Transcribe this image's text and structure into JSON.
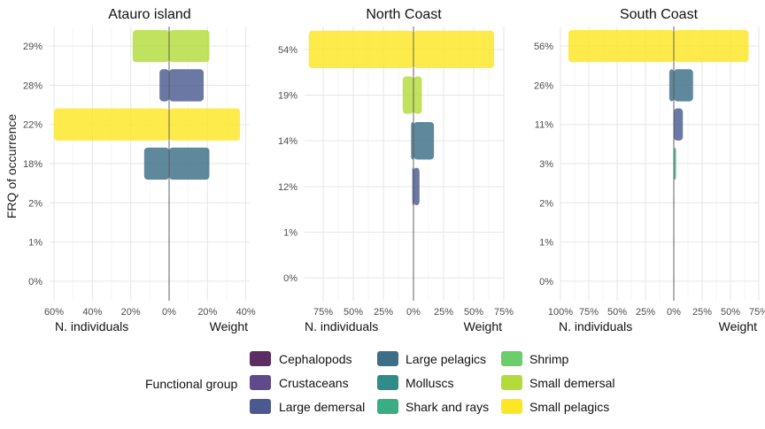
{
  "y_axis_title": "FRQ of occurrence",
  "axis_left_label": "N. individuals",
  "axis_right_label": "Weight",
  "legend": {
    "title": "Functional group",
    "items": [
      {
        "label": "Cephalopods",
        "color": "#5c2d63"
      },
      {
        "label": "Crustaceans",
        "color": "#5f4a8b"
      },
      {
        "label": "Large demersal",
        "color": "#4a5a90"
      },
      {
        "label": "Large pelagics",
        "color": "#3d6e88"
      },
      {
        "label": "Molluscs",
        "color": "#2f8c88"
      },
      {
        "label": "Shark and rays",
        "color": "#3aad84"
      },
      {
        "label": "Shrimp",
        "color": "#6ccd6b"
      },
      {
        "label": "Small demersal",
        "color": "#b3dc3b"
      },
      {
        "label": "Small pelagics",
        "color": "#fde725"
      }
    ]
  },
  "chart_data": [
    {
      "type": "bar",
      "title": "Atauro island",
      "xlabel_left": "N. individuals",
      "xlabel_right": "Weight",
      "ylabel": "FRQ of occurrence",
      "xlim": [
        -60,
        42
      ],
      "x_ticks": [
        -60,
        -40,
        -20,
        0,
        20,
        40
      ],
      "x_tick_labels": [
        "60%",
        "40%",
        "20%",
        "0%",
        "20%",
        "40%"
      ],
      "categories": [
        "0%",
        "1%",
        "2%",
        "18%",
        "22%",
        "28%",
        "29%"
      ],
      "groups": [
        "",
        "",
        "",
        "Large pelagics",
        "Small pelagics",
        "Large demersal",
        "Small demersal"
      ],
      "n_individuals": [
        0,
        0,
        0,
        13,
        60,
        5,
        19
      ],
      "weight": [
        0,
        0,
        0,
        21,
        37,
        18,
        21
      ],
      "grid": true
    },
    {
      "type": "bar",
      "title": "North Coast",
      "xlabel_left": "N. individuals",
      "xlabel_right": "Weight",
      "ylabel": "FRQ of occurrence",
      "xlim": [
        -90,
        75
      ],
      "x_ticks": [
        -75,
        -50,
        -25,
        0,
        25,
        50,
        75
      ],
      "x_tick_labels": [
        "75%",
        "50%",
        "25%",
        "0%",
        "25%",
        "50%",
        "75%"
      ],
      "categories": [
        "0%",
        "1%",
        "12%",
        "14%",
        "19%",
        "54%"
      ],
      "groups": [
        "",
        "",
        "Large demersal",
        "Large pelagics",
        "Small demersal",
        "Small pelagics"
      ],
      "n_individuals": [
        0,
        0,
        1,
        2,
        9,
        87
      ],
      "weight": [
        0,
        0,
        5,
        17,
        7,
        67
      ],
      "grid": true
    },
    {
      "type": "bar",
      "title": "South Coast",
      "xlabel_left": "N. individuals",
      "xlabel_right": "Weight",
      "ylabel": "FRQ of occurrence",
      "xlim": [
        -100,
        75
      ],
      "x_ticks": [
        -100,
        -75,
        -50,
        -25,
        0,
        25,
        50,
        75
      ],
      "x_tick_labels": [
        "100%",
        "75%",
        "50%",
        "25%",
        "0%",
        "25%",
        "50%",
        "75%"
      ],
      "categories": [
        "0%",
        "1%",
        "2%",
        "3%",
        "11%",
        "26%",
        "56%"
      ],
      "groups": [
        "",
        "",
        "",
        "Shark and rays",
        "Large demersal",
        "Large pelagics",
        "Small pelagics"
      ],
      "n_individuals": [
        0,
        0,
        0,
        0,
        0,
        4,
        93
      ],
      "weight": [
        0,
        0,
        0,
        2,
        8,
        17,
        66
      ],
      "grid": true
    }
  ]
}
